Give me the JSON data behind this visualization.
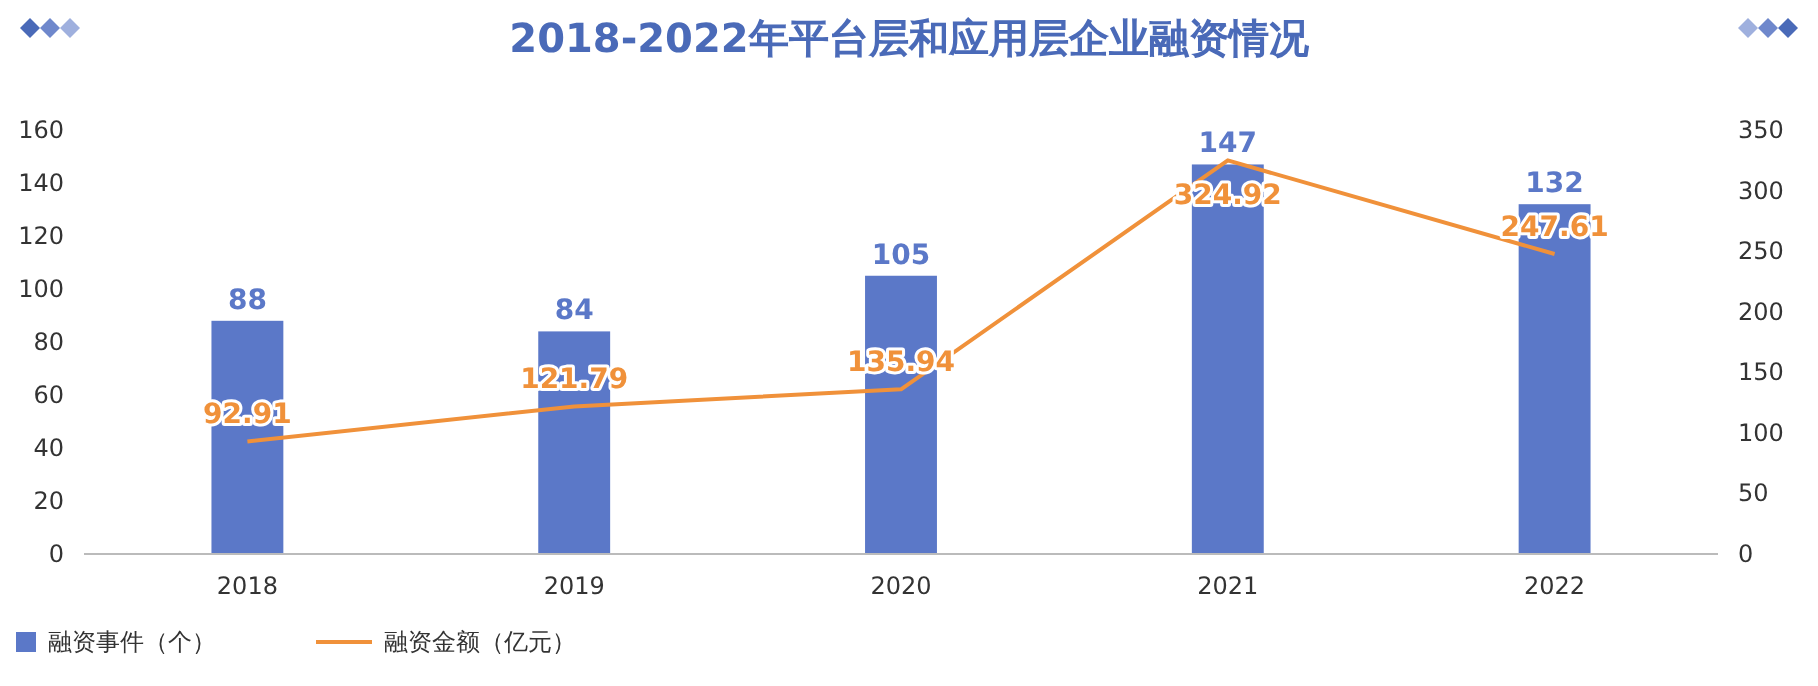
{
  "chart_data": {
    "type": "bar",
    "title": "2018-2022年平台层和应用层企业融资情况",
    "categories": [
      "2018",
      "2019",
      "2020",
      "2021",
      "2022"
    ],
    "series": [
      {
        "name": "融资事件（个）",
        "color": "#5b78c8",
        "values": [
          88,
          84,
          105,
          147,
          132
        ]
      },
      {
        "name": "融资金额（亿元）",
        "type": "line",
        "axis": "y2",
        "color": "#f0913a",
        "values": [
          92.91,
          121.79,
          135.94,
          324.92,
          247.61
        ]
      }
    ],
    "ylim": [
      0,
      160
    ],
    "yticks": [
      0,
      20,
      40,
      60,
      80,
      100,
      120,
      140,
      160
    ],
    "y2lim": [
      0,
      350
    ],
    "y2ticks": [
      0,
      50,
      100,
      150,
      200,
      250,
      300,
      350
    ],
    "data_labels": true,
    "legend": "bottom left",
    "grid": false,
    "marker": "none",
    "line_style": "solid"
  }
}
